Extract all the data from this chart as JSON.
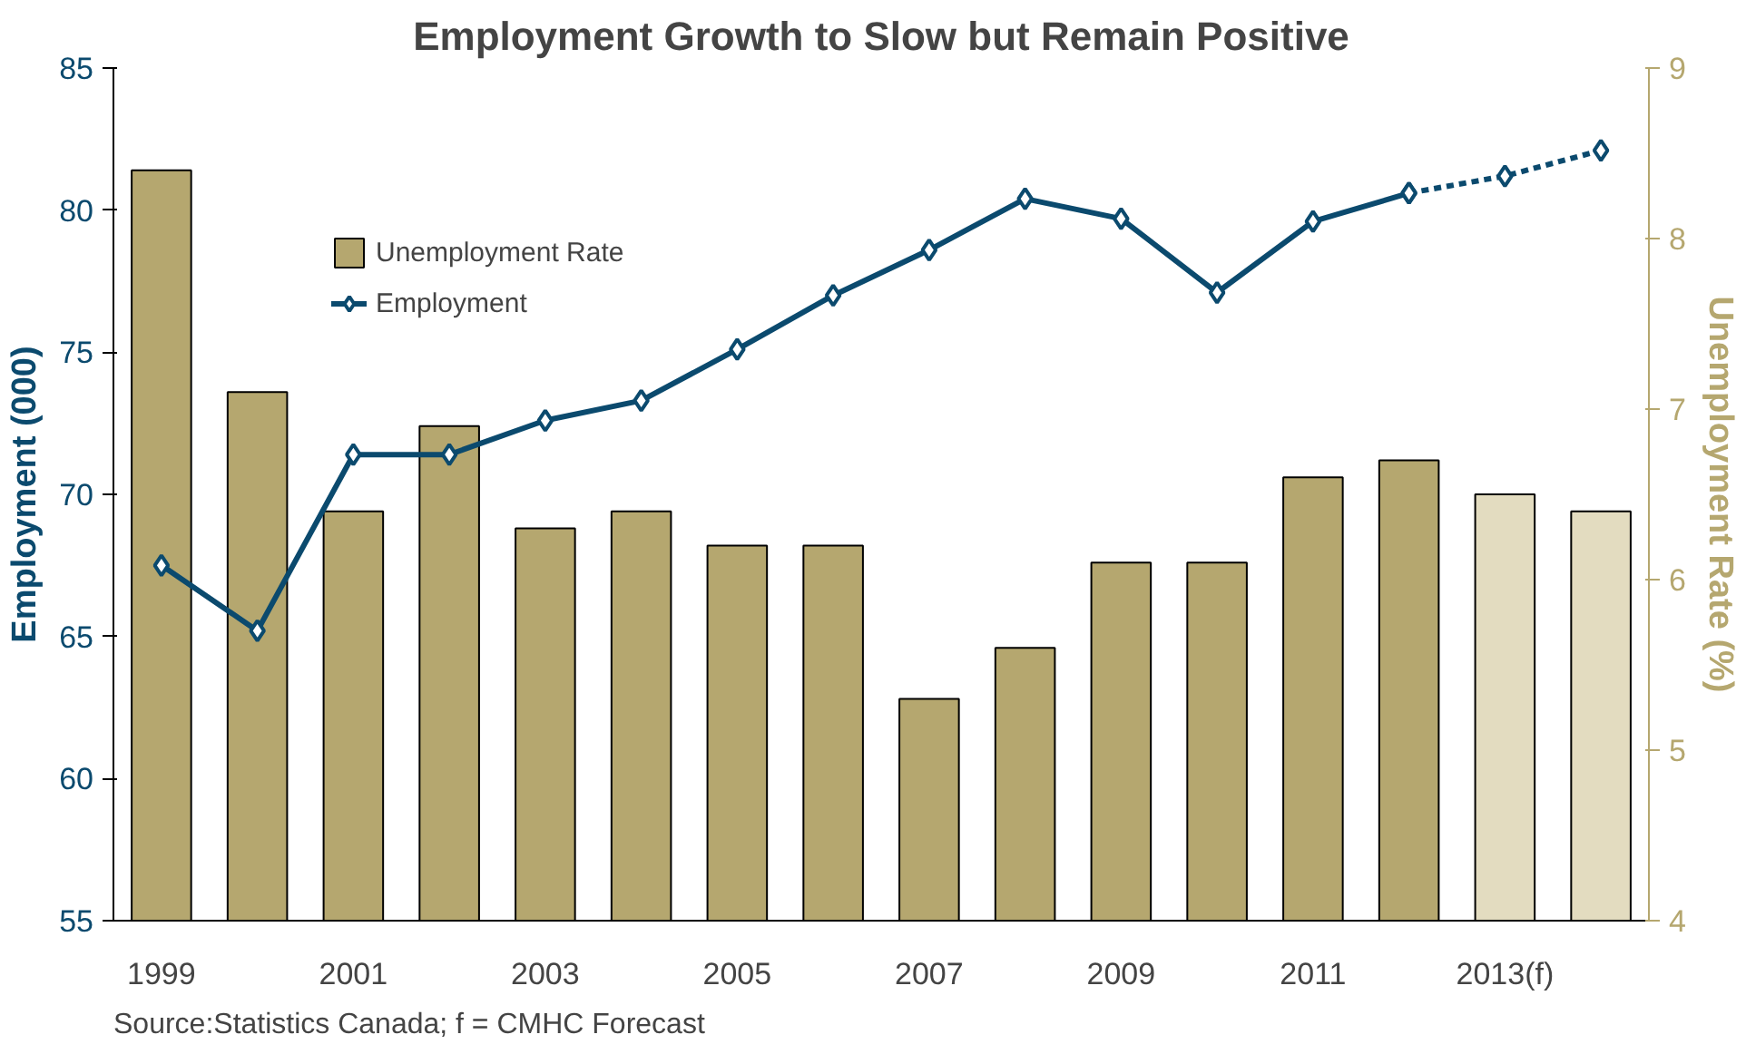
{
  "chart_data": {
    "type": "bar",
    "title": "Employment Growth to Slow but Remain Positive",
    "ylabel": "Employment (000)",
    "y2label": "Unemployment Rate (%)",
    "categories": [
      "1999",
      null,
      "2001",
      null,
      "2003",
      null,
      "2005",
      null,
      "2007",
      null,
      "2009",
      null,
      "2011",
      null,
      "2013(f)",
      null
    ],
    "ylim": [
      55,
      85
    ],
    "yticks": [
      55,
      60,
      65,
      70,
      75,
      80,
      85
    ],
    "y2lim": [
      4,
      9
    ],
    "y2ticks": [
      4,
      5,
      6,
      7,
      8,
      9
    ],
    "series": [
      {
        "name": "Unemployment Rate",
        "axis": "y2",
        "color": "#b5a76f",
        "values": [
          8.4,
          7.1,
          6.4,
          6.9,
          6.3,
          6.4,
          6.2,
          6.2,
          5.3,
          5.6,
          6.1,
          6.1,
          6.6,
          6.7,
          null,
          null
        ]
      },
      {
        "axis": "y2",
        "color": "#e3dcc0",
        "values": [
          null,
          null,
          null,
          null,
          null,
          null,
          null,
          null,
          null,
          null,
          null,
          null,
          null,
          null,
          6.5,
          6.4
        ]
      },
      {
        "name": "Employment",
        "type": "line",
        "color": "#0b4a6e",
        "line_style": "solid",
        "values": [
          67.5,
          65.2,
          71.4,
          71.4,
          72.6,
          73.3,
          75.1,
          77.0,
          78.6,
          80.4,
          79.7,
          77.1,
          79.6,
          80.6,
          null,
          null
        ]
      },
      {
        "type": "line",
        "color": "#0b4a6e",
        "line_style": "dashed",
        "values": [
          null,
          null,
          null,
          null,
          null,
          null,
          null,
          null,
          null,
          null,
          null,
          null,
          null,
          80.6,
          81.2,
          82.1
        ]
      }
    ],
    "marker": "diamond",
    "legend": "top left",
    "grid": false,
    "annotations": [
      "Source:Statistics Canada; f = CMHC Forecast"
    ]
  }
}
